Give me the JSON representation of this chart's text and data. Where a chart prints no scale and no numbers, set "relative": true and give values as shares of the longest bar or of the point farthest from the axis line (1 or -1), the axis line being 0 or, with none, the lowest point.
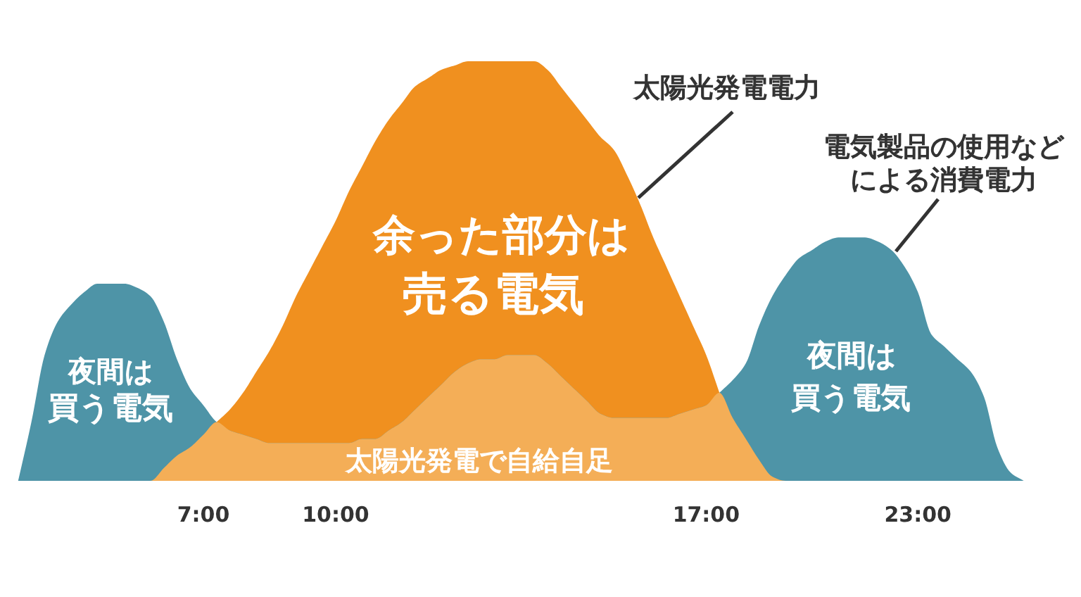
{
  "chart_data": {
    "type": "area",
    "relative": true,
    "categories": [
      null,
      null,
      null,
      null,
      null,
      null,
      null,
      null,
      null,
      null,
      null,
      null,
      null,
      null,
      "7:00",
      null,
      null,
      null,
      null,
      null,
      null,
      null,
      null,
      null,
      "10:00",
      null,
      null,
      null,
      null,
      null,
      null,
      null,
      null,
      null,
      null,
      null,
      null,
      null,
      null,
      null,
      null,
      null,
      null,
      null,
      null,
      null,
      null,
      null,
      null,
      null,
      null,
      null,
      "17:00",
      null,
      null,
      null,
      null,
      null,
      null,
      null,
      null,
      null,
      null,
      null,
      null,
      null,
      null,
      null,
      "23:00",
      null,
      null,
      null,
      null,
      null,
      null,
      null,
      null
    ],
    "series": [
      {
        "name": "太陽光発電電力",
        "color": "#f0901f",
        "values": [
          null,
          null,
          null,
          null,
          null,
          null,
          null,
          null,
          null,
          null,
          null,
          null,
          null,
          null,
          null,
          0.14,
          0.17,
          0.21,
          0.26,
          0.31,
          0.37,
          0.44,
          0.5,
          0.56,
          0.62,
          0.69,
          0.75,
          0.81,
          0.86,
          0.9,
          0.94,
          0.96,
          0.98,
          0.99,
          1.0,
          1.0,
          1.0,
          1.0,
          1.0,
          1.0,
          0.98,
          0.94,
          0.9,
          0.86,
          0.82,
          0.79,
          0.73,
          0.66,
          0.58,
          0.51,
          0.44,
          0.37,
          0.3,
          0.21,
          null,
          null,
          null,
          null,
          null,
          null,
          null,
          null,
          null,
          null,
          null,
          null,
          null,
          null,
          null,
          null,
          null,
          null,
          null,
          null,
          null,
          null,
          null
        ]
      },
      {
        "name": "電気製品の使用などによる消費電力",
        "color": "#4e94a7",
        "values": [
          0,
          0.14,
          0.3,
          0.38,
          0.42,
          0.45,
          0.47,
          0.47,
          0.47,
          0.46,
          0.44,
          0.38,
          0.29,
          0.22,
          0.18,
          0.14,
          0.12,
          0.11,
          0.1,
          0.09,
          0.09,
          0.09,
          0.09,
          0.09,
          0.09,
          0.09,
          0.1,
          0.1,
          0.12,
          0.14,
          0.17,
          0.2,
          0.23,
          0.26,
          0.28,
          0.29,
          0.29,
          0.3,
          0.3,
          0.3,
          0.28,
          0.25,
          0.22,
          0.19,
          0.16,
          0.15,
          0.15,
          0.15,
          0.15,
          0.15,
          0.16,
          0.17,
          0.18,
          0.21,
          0.24,
          0.28,
          0.37,
          0.44,
          0.49,
          0.53,
          0.55,
          0.57,
          0.58,
          0.58,
          0.58,
          0.57,
          0.55,
          0.51,
          0.45,
          0.35,
          0.32,
          0.29,
          0.26,
          0.2,
          0.08,
          0.02,
          0
        ]
      },
      {
        "name": "太陽光発電で自給自足",
        "color": "#f4ae57",
        "values": [
          0,
          0,
          0,
          0,
          0,
          0,
          0,
          0,
          0,
          0,
          0,
          0.03,
          0.06,
          0.08,
          0.11,
          0.14,
          0.12,
          0.11,
          0.1,
          0.09,
          0.09,
          0.09,
          0.09,
          0.09,
          0.09,
          0.09,
          0.1,
          0.1,
          0.12,
          0.14,
          0.17,
          0.2,
          0.23,
          0.26,
          0.28,
          0.29,
          0.29,
          0.3,
          0.3,
          0.3,
          0.28,
          0.25,
          0.22,
          0.19,
          0.16,
          0.15,
          0.15,
          0.15,
          0.15,
          0.15,
          0.16,
          0.17,
          0.18,
          0.21,
          0.15,
          0.1,
          0.05,
          0.01,
          0,
          0,
          0,
          0,
          0,
          0,
          0,
          0,
          0,
          0,
          0,
          0,
          0,
          0,
          0,
          0,
          0,
          0,
          0
        ]
      }
    ],
    "annotations": [
      "余った部分は",
      "売る電気",
      "夜間は",
      "買う電気",
      "夜間は",
      "買う電気"
    ]
  }
}
